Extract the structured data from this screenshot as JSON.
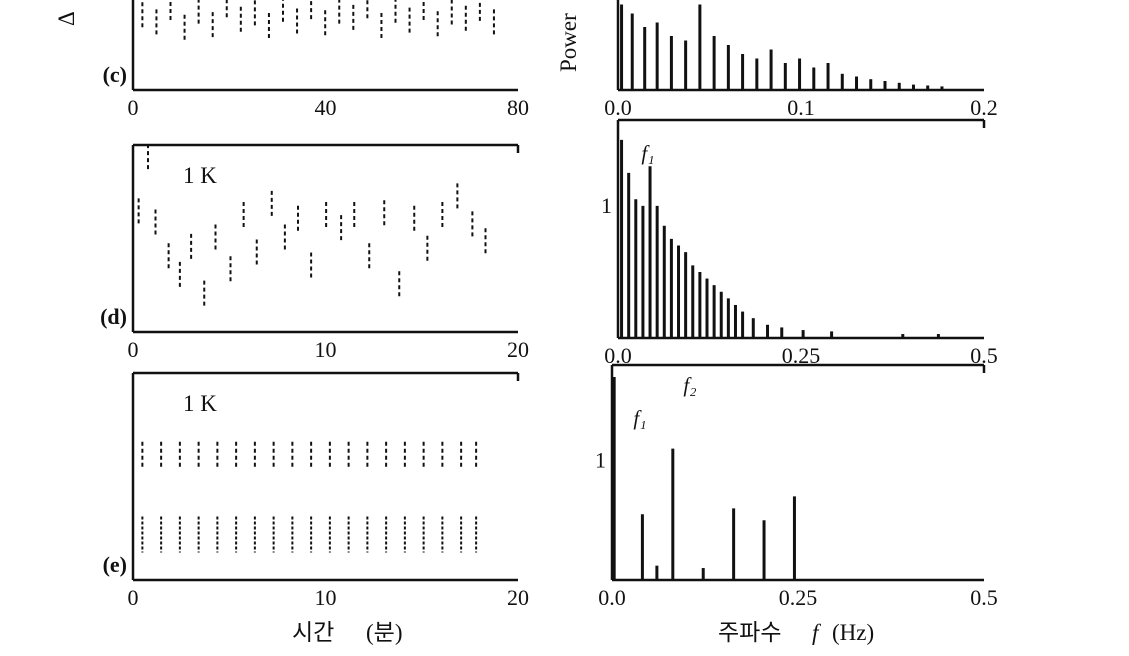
{
  "labels": {
    "left_axis_title_fragment": "Δ",
    "right_axis_title_fragment": "Power",
    "time_axis_title": "시간",
    "time_axis_unit": "(분)",
    "freq_axis_title": "주파수",
    "freq_axis_symbol": "f",
    "freq_axis_unit": "(Hz)"
  },
  "chart_data": [
    {
      "id": "time-c",
      "type": "scatter",
      "panel_label": "(c)",
      "xlabel": "",
      "xlim": [
        0,
        80
      ],
      "x_ticks": [
        "0",
        "40",
        "80"
      ],
      "x": [
        2,
        5,
        8,
        11,
        14,
        17,
        20,
        23,
        26,
        29,
        32,
        35,
        38,
        41,
        44,
        47,
        50,
        53,
        56,
        59,
        62,
        65,
        68,
        71,
        74,
        77
      ],
      "values": [
        0.82,
        0.74,
        0.9,
        0.68,
        0.86,
        0.71,
        0.93,
        0.77,
        0.84,
        0.7,
        0.88,
        0.75,
        0.91,
        0.73,
        0.86,
        0.79,
        0.92,
        0.7,
        0.87,
        0.76,
        0.9,
        0.72,
        0.85,
        0.78,
        0.89,
        0.74
      ]
    },
    {
      "id": "time-d",
      "type": "scatter",
      "panel_label": "(d)",
      "inline_label": "1 K",
      "xlabel": "",
      "xlim": [
        0,
        20
      ],
      "x_ticks": [
        "0",
        "10",
        "20"
      ],
      "x": [
        0.3,
        0.8,
        1.2,
        1.9,
        2.5,
        3.1,
        3.8,
        4.4,
        5.2,
        5.9,
        6.6,
        7.4,
        8.1,
        8.8,
        9.5,
        10.3,
        11.1,
        11.8,
        12.6,
        13.4,
        14.2,
        15.0,
        15.7,
        16.5,
        17.3,
        18.1,
        18.8
      ],
      "values": [
        0.64,
        0.93,
        0.58,
        0.4,
        0.3,
        0.45,
        0.2,
        0.5,
        0.33,
        0.62,
        0.42,
        0.68,
        0.5,
        0.6,
        0.35,
        0.62,
        0.55,
        0.62,
        0.4,
        0.63,
        0.25,
        0.6,
        0.44,
        0.62,
        0.72,
        0.57,
        0.48
      ]
    },
    {
      "id": "time-e",
      "type": "scatter",
      "panel_label": "(e)",
      "inline_label": "1 K",
      "xlabel": "",
      "xlim": [
        0,
        20
      ],
      "x_ticks": [
        "0",
        "10",
        "20"
      ],
      "x": [
        0.5,
        1.5,
        2.5,
        3.5,
        4.5,
        5.5,
        6.5,
        7.5,
        8.5,
        9.5,
        10.5,
        11.5,
        12.5,
        13.5,
        14.5,
        15.5,
        16.5,
        17.5,
        18.3
      ],
      "values": [
        0.6,
        0.6,
        0.6,
        0.6,
        0.6,
        0.6,
        0.6,
        0.6,
        0.6,
        0.6,
        0.6,
        0.6,
        0.6,
        0.6,
        0.6,
        0.6,
        0.6,
        0.6,
        0.6
      ],
      "values_lower": [
        0.22,
        0.22,
        0.22,
        0.22,
        0.22,
        0.22,
        0.22,
        0.22,
        0.22,
        0.22,
        0.22,
        0.22,
        0.22,
        0.22,
        0.22,
        0.22,
        0.22,
        0.22,
        0.22
      ]
    },
    {
      "id": "spectrum-c",
      "type": "bar",
      "ylabel": "Power",
      "xlim": [
        0,
        0.2
      ],
      "x_ticks": [
        "0.0",
        "0.1",
        "0.2"
      ],
      "x": [
        0.002,
        0.008,
        0.015,
        0.022,
        0.03,
        0.038,
        0.046,
        0.054,
        0.062,
        0.07,
        0.078,
        0.086,
        0.094,
        0.102,
        0.11,
        0.118,
        0.126,
        0.134,
        0.142,
        0.15,
        0.158,
        0.166,
        0.174,
        0.182
      ],
      "values": [
        0.95,
        0.85,
        0.7,
        0.75,
        0.6,
        0.55,
        0.95,
        0.6,
        0.5,
        0.4,
        0.35,
        0.45,
        0.3,
        0.35,
        0.25,
        0.3,
        0.18,
        0.15,
        0.12,
        0.1,
        0.08,
        0.06,
        0.05,
        0.04
      ]
    },
    {
      "id": "spectrum-d",
      "type": "bar",
      "xlim": [
        0,
        0.5
      ],
      "x_ticks": [
        "0.0",
        "0.25",
        "0.5"
      ],
      "y_ticks": [
        "1"
      ],
      "ylim": [
        0,
        1.65
      ],
      "peak_labels": [
        "f₁"
      ],
      "x": [
        0.005,
        0.015,
        0.025,
        0.035,
        0.045,
        0.055,
        0.065,
        0.075,
        0.085,
        0.095,
        0.105,
        0.115,
        0.125,
        0.135,
        0.145,
        0.155,
        0.165,
        0.175,
        0.19,
        0.21,
        0.23,
        0.26,
        0.3,
        0.4,
        0.45
      ],
      "values": [
        1.5,
        1.25,
        1.05,
        1.0,
        1.3,
        1.0,
        0.85,
        0.75,
        0.7,
        0.65,
        0.55,
        0.5,
        0.45,
        0.4,
        0.35,
        0.3,
        0.25,
        0.2,
        0.15,
        0.1,
        0.08,
        0.06,
        0.05,
        0.03,
        0.03
      ]
    },
    {
      "id": "spectrum-e",
      "type": "bar",
      "xlim": [
        0,
        0.5
      ],
      "x_ticks": [
        "0.0",
        "0.25",
        "0.5"
      ],
      "y_ticks": [
        "1"
      ],
      "ylim": [
        0,
        1.8
      ],
      "peak_labels": [
        "f₁",
        "f₂"
      ],
      "x": [
        0.003,
        0.042,
        0.062,
        0.084,
        0.126,
        0.168,
        0.21,
        0.252
      ],
      "values": [
        1.7,
        0.55,
        0.12,
        1.1,
        0.1,
        0.6,
        0.5,
        0.7
      ]
    }
  ]
}
